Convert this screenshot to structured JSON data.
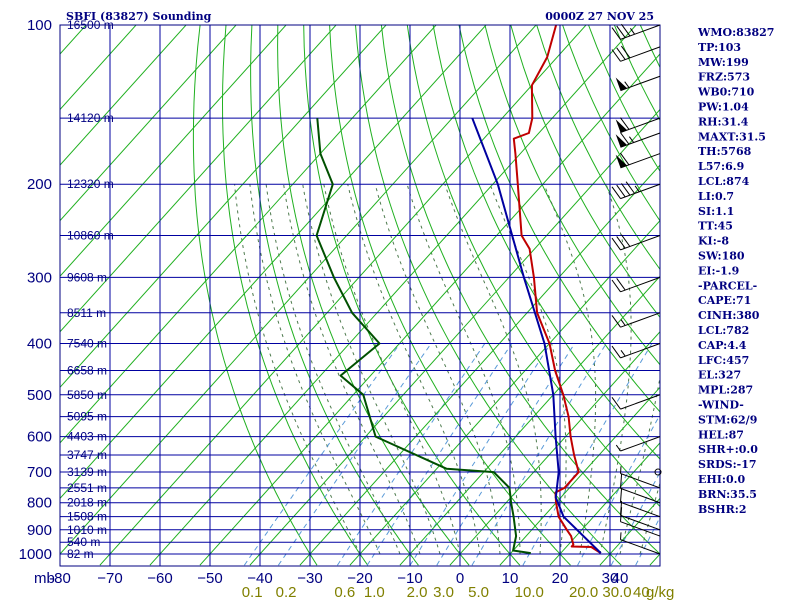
{
  "header": {
    "title": "SBFI (83827) Sounding",
    "time": "0000Z 27 NOV 25"
  },
  "chart_data": {
    "type": "skew-t",
    "title": "SBFI (83827) Sounding",
    "subtitle": "0000Z 27 NOV 25",
    "pressure_axis": {
      "label": "mb",
      "range": [
        1000,
        100
      ],
      "ticks": [
        100,
        200,
        300,
        400,
        500,
        600,
        700,
        800,
        900,
        1000
      ]
    },
    "temperature_axis": {
      "range": [
        -80,
        40
      ],
      "ticks": [
        -80,
        -70,
        -60,
        -50,
        -40,
        -30,
        -20,
        -10,
        0,
        10,
        20,
        30,
        40
      ],
      "tick_labels": [
        "-80",
        "−70",
        "−60",
        "−50",
        "−40",
        "−30",
        "−20",
        "−10",
        "0",
        "10",
        "20",
        "30",
        "40"
      ]
    },
    "mixing_ratio_labels": [
      {
        "value": 0.1,
        "label": "0.1"
      },
      {
        "value": 0.2,
        "label": "0.2"
      },
      {
        "value": 0.6,
        "label": "0.6"
      },
      {
        "value": 1.0,
        "label": "1.0"
      },
      {
        "value": 2.0,
        "label": "2.0"
      },
      {
        "value": 3.0,
        "label": "3.0"
      },
      {
        "value": 5.0,
        "label": "5.0"
      },
      {
        "value": 10.0,
        "label": "10.0"
      },
      {
        "value": 20.0,
        "label": "20.0"
      },
      {
        "value": 30.0,
        "label": "30.0"
      },
      {
        "value": 40.0,
        "label": "40"
      }
    ],
    "mixing_unit": "g/kg",
    "height_labels": [
      {
        "p": 100,
        "label": "16500 m"
      },
      {
        "p": 150,
        "label": "14120 m"
      },
      {
        "p": 200,
        "label": "12320 m"
      },
      {
        "p": 250,
        "label": "10860 m"
      },
      {
        "p": 300,
        "label": "9608 m"
      },
      {
        "p": 350,
        "label": "8511 m"
      },
      {
        "p": 400,
        "label": "7540 m"
      },
      {
        "p": 450,
        "label": "6658 m"
      },
      {
        "p": 500,
        "label": "5850 m"
      },
      {
        "p": 550,
        "label": "5095 m"
      },
      {
        "p": 600,
        "label": "4403 m"
      },
      {
        "p": 650,
        "label": "3747 m"
      },
      {
        "p": 700,
        "label": "3139 m"
      },
      {
        "p": 750,
        "label": "2551 m"
      },
      {
        "p": 800,
        "label": "2018 m"
      },
      {
        "p": 850,
        "label": "1508 m"
      },
      {
        "p": 900,
        "label": "1010 m"
      },
      {
        "p": 950,
        "label": "540 m"
      },
      {
        "p": 1000,
        "label": "82 m"
      }
    ],
    "series": [
      {
        "name": "temperature",
        "color": "#c00000",
        "points": [
          [
            996,
            28
          ],
          [
            970,
            25
          ],
          [
            968,
            21
          ],
          [
            960,
            21
          ],
          [
            925,
            19
          ],
          [
            900,
            17
          ],
          [
            850,
            13
          ],
          [
            800,
            10
          ],
          [
            765,
            8
          ],
          [
            750,
            9
          ],
          [
            700,
            9
          ],
          [
            650,
            5
          ],
          [
            600,
            1
          ],
          [
            550,
            -3
          ],
          [
            500,
            -8
          ],
          [
            450,
            -14
          ],
          [
            400,
            -20
          ],
          [
            350,
            -28
          ],
          [
            300,
            -35
          ],
          [
            265,
            -41
          ],
          [
            250,
            -45
          ],
          [
            200,
            -55
          ],
          [
            175,
            -61
          ],
          [
            164,
            -64
          ],
          [
            160,
            -62
          ],
          [
            150,
            -64
          ],
          [
            130,
            -70
          ],
          [
            115,
            -72
          ],
          [
            100,
            -76
          ]
        ]
      },
      {
        "name": "dewpoint",
        "color": "#005000",
        "points": [
          [
            996,
            14
          ],
          [
            985,
            10
          ],
          [
            925,
            8
          ],
          [
            850,
            4
          ],
          [
            800,
            1
          ],
          [
            750,
            -2
          ],
          [
            700,
            -8
          ],
          [
            690,
            -18
          ],
          [
            600,
            -38
          ],
          [
            500,
            -48
          ],
          [
            460,
            -56
          ],
          [
            400,
            -54
          ],
          [
            350,
            -65
          ],
          [
            300,
            -75
          ],
          [
            250,
            -86
          ],
          [
            200,
            -92
          ],
          [
            175,
            -100
          ],
          [
            150,
            -107
          ]
        ]
      },
      {
        "name": "parcel",
        "color": "#0000a0",
        "points": [
          [
            996,
            28
          ],
          [
            850,
            14
          ],
          [
            782,
            9
          ],
          [
            700,
            5
          ],
          [
            600,
            -2
          ],
          [
            500,
            -10
          ],
          [
            400,
            -21
          ],
          [
            300,
            -37
          ],
          [
            200,
            -59
          ],
          [
            150,
            -76
          ]
        ]
      }
    ],
    "wind_barbs": [
      {
        "p": 100,
        "speed_kt": 35
      },
      {
        "p": 110,
        "speed_kt": 30
      },
      {
        "p": 125,
        "speed_kt": 55
      },
      {
        "p": 150,
        "speed_kt": 60
      },
      {
        "p": 160,
        "speed_kt": 65
      },
      {
        "p": 175,
        "speed_kt": 60
      },
      {
        "p": 200,
        "speed_kt": 45
      },
      {
        "p": 250,
        "speed_kt": 30
      },
      {
        "p": 300,
        "speed_kt": 20
      },
      {
        "p": 350,
        "speed_kt": 15
      },
      {
        "p": 400,
        "speed_kt": 15
      },
      {
        "p": 500,
        "speed_kt": 10
      },
      {
        "p": 600,
        "speed_kt": 5
      },
      {
        "p": 700,
        "speed_kt": 0
      },
      {
        "p": 750,
        "speed_kt": 5
      },
      {
        "p": 800,
        "speed_kt": 10
      },
      {
        "p": 850,
        "speed_kt": 10
      },
      {
        "p": 900,
        "speed_kt": 10
      },
      {
        "p": 925,
        "speed_kt": 10
      },
      {
        "p": 1000,
        "speed_kt": 5
      }
    ],
    "indices": [
      "WMO:83827",
      "TP:103",
      "MW:199",
      "FRZ:573",
      "WB0:710",
      "PW:1.04",
      "RH:31.4",
      "MAXT:31.5",
      "TH:5768",
      "L57:6.9",
      "LCL:874",
      "LI:0.7",
      "SI:1.1",
      "TT:45",
      "KI:-8",
      "SW:180",
      "EI:-1.9",
      "-PARCEL-",
      "CAPE:71",
      "CINH:380",
      "LCL:782",
      "CAP:4.4",
      "LFC:457",
      "EL:327",
      "MPL:287",
      "-WIND-",
      "STM:62/9",
      "HEL:87",
      "SHR+:0.0",
      "SRDS:-17",
      "EHI:0.0",
      "BRN:35.5",
      "BSHR:2"
    ]
  }
}
